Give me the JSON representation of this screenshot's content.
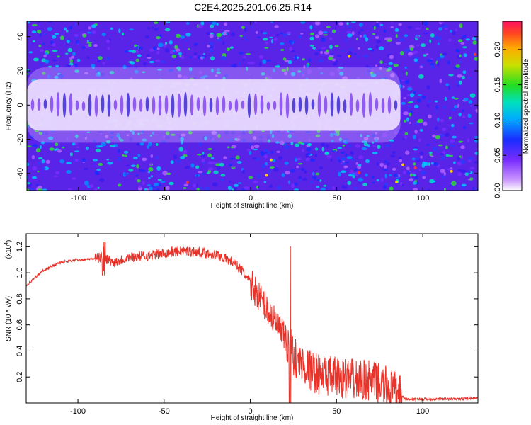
{
  "chart_data": [
    {
      "type": "heatmap",
      "title": "C2E4.2025.201.06.25.R14",
      "xlabel": "Height of straight line (km)",
      "ylabel": "Frequency (Hz)",
      "xlim": [
        -130,
        132
      ],
      "ylim": [
        -50,
        49
      ],
      "xticks": [
        -100,
        -50,
        0,
        50,
        100
      ],
      "yticks": [
        -40,
        -20,
        0,
        20,
        40
      ],
      "colorbar": {
        "label": "Normalized spectral amplitude",
        "range": [
          0,
          0.24
        ],
        "ticks": [
          "0.00",
          "0.05",
          "0.10",
          "0.15",
          "0.20"
        ]
      },
      "band": {
        "x_from": -130,
        "x_to": 87,
        "freq_from": -15,
        "freq_to": 15
      }
    },
    {
      "type": "line",
      "xlabel": "Height of straight line (km)",
      "ylabel": "SNR (10 * v/v)",
      "multiplier": "(x10",
      "multiplier_exp": "4",
      "xlim": [
        -130,
        132
      ],
      "ylim": [
        0,
        1.3
      ],
      "xticks": [
        -100,
        -50,
        0,
        50,
        100
      ],
      "yticks": [
        "0.2",
        "0.4",
        "0.6",
        "0.8",
        "1.0",
        "1.2"
      ],
      "color": "#e8332a",
      "series": [
        {
          "x": [
            -130,
            -120,
            -110,
            -100,
            -90,
            -85,
            -80,
            -70,
            -60,
            -50,
            -40,
            -30,
            -20,
            -10,
            -5,
            0,
            5,
            10,
            15,
            20,
            22,
            23,
            25,
            30,
            35,
            40,
            50,
            60,
            70,
            80,
            85,
            90,
            100,
            110,
            120,
            132
          ],
          "values": [
            0.9,
            1.02,
            1.08,
            1.1,
            1.11,
            1.12,
            1.08,
            1.12,
            1.13,
            1.15,
            1.17,
            1.16,
            1.14,
            1.08,
            1.02,
            0.92,
            0.82,
            0.72,
            0.6,
            0.5,
            0.42,
            0.5,
            0.36,
            0.3,
            0.25,
            0.22,
            0.2,
            0.18,
            0.17,
            0.12,
            0.08,
            0.03,
            0.03,
            0.03,
            0.03,
            0.04
          ]
        }
      ]
    }
  ]
}
